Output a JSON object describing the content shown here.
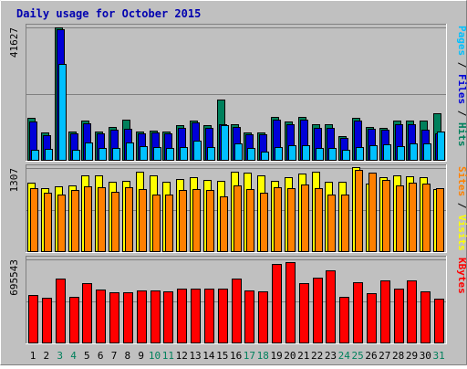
{
  "title": "Daily usage for October 2015",
  "colors": {
    "frame": "#c0c0c0",
    "panel": "#c0c0c0",
    "hits": "#00805c",
    "files": "#0000d8",
    "pages": "#00c0ff",
    "visits": "#ffff00",
    "sites": "#ff8000",
    "kbytes": "#ff0000",
    "title": "#0000b0",
    "weekday_label": "#000000",
    "weekend_label": "#00805c"
  },
  "chart_data": [
    {
      "type": "bar",
      "panel": "top",
      "ylabel_parts": [
        "Pages",
        "/",
        "Files",
        "/",
        "Hits"
      ],
      "y_max_label": "41627",
      "ylim": [
        0,
        41627
      ],
      "grid": true,
      "categories": [
        "1",
        "2",
        "3",
        "4",
        "5",
        "6",
        "7",
        "8",
        "9",
        "10",
        "11",
        "12",
        "13",
        "14",
        "15",
        "16",
        "17",
        "18",
        "19",
        "20",
        "21",
        "22",
        "23",
        "24",
        "25",
        "26",
        "27",
        "28",
        "29",
        "30",
        "31"
      ],
      "weekend_days": [
        "3",
        "4",
        "10",
        "11",
        "17",
        "18",
        "24",
        "25",
        "31"
      ],
      "series": [
        {
          "name": "Hits",
          "values": [
            13300,
            8700,
            41627,
            9100,
            12500,
            9000,
            10500,
            12800,
            9100,
            9400,
            9100,
            11000,
            12600,
            11000,
            19200,
            11300,
            8900,
            8800,
            13800,
            12200,
            13800,
            11400,
            11400,
            7800,
            13400,
            10500,
            10300,
            12500,
            12500,
            12500,
            14800
          ]
        },
        {
          "name": "Files",
          "values": [
            12400,
            8100,
            41000,
            8500,
            11600,
            8600,
            9700,
            10000,
            8600,
            8900,
            8600,
            10400,
            11900,
            10400,
            11300,
            10500,
            8400,
            8200,
            12900,
            11300,
            12800,
            10300,
            10200,
            7000,
            12600,
            10000,
            9800,
            11400,
            11300,
            9800,
            8600
          ]
        },
        {
          "name": "Pages",
          "values": [
            3400,
            3800,
            30200,
            3400,
            5800,
            3900,
            3900,
            5700,
            4700,
            4400,
            3900,
            4400,
            6200,
            4200,
            11000,
            5500,
            3900,
            2800,
            4300,
            4900,
            4800,
            4100,
            4100,
            3300,
            4300,
            4800,
            5100,
            4600,
            5400,
            5500,
            9000
          ]
        }
      ]
    },
    {
      "type": "bar",
      "panel": "middle",
      "ylabel_parts": [
        "Sites",
        "/",
        "Visits"
      ],
      "y_max_label": "1307",
      "ylim": [
        0,
        1307
      ],
      "grid": true,
      "categories": [
        "1",
        "2",
        "3",
        "4",
        "5",
        "6",
        "7",
        "8",
        "9",
        "10",
        "11",
        "12",
        "13",
        "14",
        "15",
        "16",
        "17",
        "18",
        "19",
        "20",
        "21",
        "22",
        "23",
        "24",
        "25",
        "26",
        "27",
        "28",
        "29",
        "30",
        "31"
      ],
      "series": [
        {
          "name": "Visits",
          "values": [
            1080,
            990,
            1020,
            1030,
            1200,
            1200,
            1100,
            1110,
            1250,
            1200,
            1100,
            1130,
            1170,
            1120,
            1110,
            1250,
            1230,
            1190,
            1110,
            1170,
            1220,
            1250,
            1090,
            1090,
            1320,
            1070,
            1160,
            1200,
            1180,
            1170,
            980
          ]
        },
        {
          "name": "Sites",
          "values": [
            1000,
            930,
            900,
            960,
            1020,
            1010,
            940,
            1010,
            980,
            900,
            900,
            960,
            980,
            960,
            870,
            1040,
            980,
            920,
            1010,
            990,
            1050,
            1000,
            900,
            900,
            1280,
            1240,
            1120,
            1030,
            1080,
            1070,
            1000
          ]
        }
      ]
    },
    {
      "type": "bar",
      "panel": "bottom",
      "ylabel_parts": [
        "KBytes"
      ],
      "y_max_label": "695543",
      "ylim": [
        0,
        695543
      ],
      "grid": true,
      "categories": [
        "1",
        "2",
        "3",
        "4",
        "5",
        "6",
        "7",
        "8",
        "9",
        "10",
        "11",
        "12",
        "13",
        "14",
        "15",
        "16",
        "17",
        "18",
        "19",
        "20",
        "21",
        "22",
        "23",
        "24",
        "25",
        "26",
        "27",
        "28",
        "29",
        "30",
        "31"
      ],
      "series": [
        {
          "name": "KBytes",
          "values": [
            400000,
            375000,
            540000,
            385000,
            500000,
            445000,
            420000,
            420000,
            435000,
            440000,
            430000,
            455000,
            455000,
            450000,
            450000,
            540000,
            440000,
            430000,
            660000,
            670000,
            500000,
            545000,
            605000,
            385000,
            510000,
            415000,
            525000,
            450000,
            520000,
            430000,
            370000
          ]
        }
      ]
    }
  ]
}
